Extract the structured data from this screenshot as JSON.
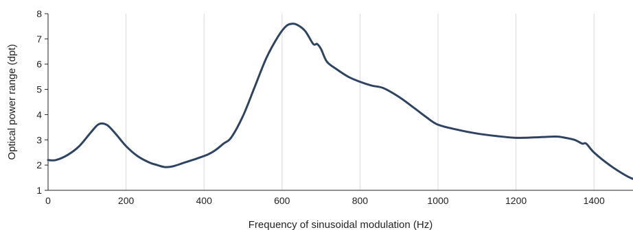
{
  "chart_data": {
    "type": "line",
    "title": "",
    "xlabel": "Frequency of sinusoidal modulation (Hz)",
    "ylabel": "Optical power range (dpt)",
    "xlim": [
      0,
      1500
    ],
    "ylim": [
      1,
      8
    ],
    "x_ticks": [
      0,
      200,
      400,
      600,
      800,
      1000,
      1200,
      1400
    ],
    "y_ticks": [
      1,
      2,
      3,
      4,
      5,
      6,
      7,
      8
    ],
    "grid": "vertical",
    "line_color": "#2e4261",
    "series": [
      {
        "x": [
          0,
          20,
          50,
          80,
          110,
          130,
          150,
          170,
          200,
          230,
          260,
          280,
          300,
          320,
          350,
          380,
          410,
          430,
          450,
          470,
          500,
          530,
          560,
          590,
          610,
          625,
          640,
          660,
          680,
          690,
          700,
          715,
          740,
          770,
          800,
          830,
          860,
          900,
          940,
          970,
          1000,
          1050,
          1100,
          1150,
          1200,
          1250,
          1300,
          1320,
          1350,
          1370,
          1380,
          1400,
          1440,
          1480,
          1500
        ],
        "y": [
          2.2,
          2.2,
          2.4,
          2.75,
          3.3,
          3.62,
          3.6,
          3.3,
          2.75,
          2.35,
          2.1,
          2.0,
          1.92,
          1.95,
          2.1,
          2.25,
          2.42,
          2.6,
          2.85,
          3.1,
          3.95,
          5.1,
          6.25,
          7.1,
          7.5,
          7.6,
          7.55,
          7.3,
          6.8,
          6.8,
          6.6,
          6.1,
          5.8,
          5.5,
          5.3,
          5.15,
          5.05,
          4.7,
          4.25,
          3.9,
          3.6,
          3.4,
          3.25,
          3.15,
          3.08,
          3.1,
          3.13,
          3.1,
          3.0,
          2.85,
          2.85,
          2.5,
          2.0,
          1.6,
          1.45
        ]
      }
    ]
  }
}
